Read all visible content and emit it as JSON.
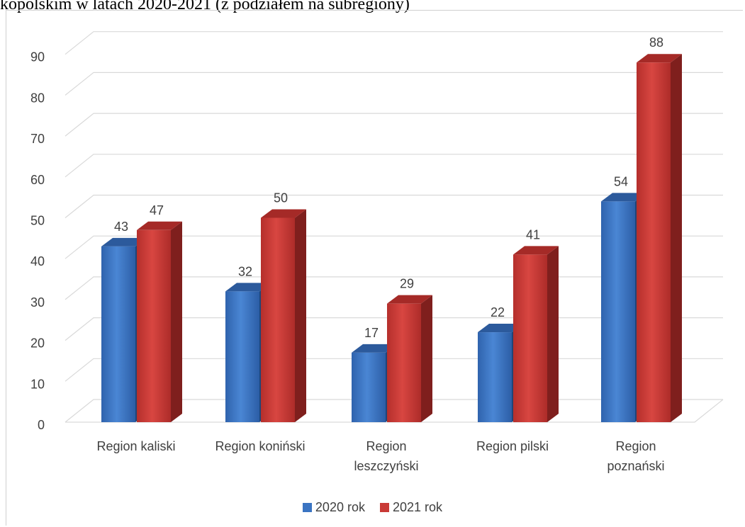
{
  "caption": "kopolskim w latach 2020-2021 (z podziałem na subregiony)",
  "chart_data": {
    "type": "bar",
    "title": "",
    "xlabel": "",
    "ylabel": "",
    "ylim": [
      0,
      90
    ],
    "yticks": [
      0,
      10,
      20,
      30,
      40,
      50,
      60,
      70,
      80,
      90
    ],
    "grid": true,
    "legend_position": "bottom",
    "categories": [
      [
        "Region kaliski"
      ],
      [
        "Region koniński"
      ],
      [
        "Region",
        "leszczyński"
      ],
      [
        "Region pilski"
      ],
      [
        "Region",
        "poznański"
      ]
    ],
    "series": [
      {
        "name": "2020 rok",
        "color": "#3a74c2",
        "values": [
          43,
          32,
          17,
          22,
          54
        ]
      },
      {
        "name": "2021 rok",
        "color": "#c93a36",
        "values": [
          47,
          50,
          29,
          41,
          88
        ]
      }
    ]
  }
}
